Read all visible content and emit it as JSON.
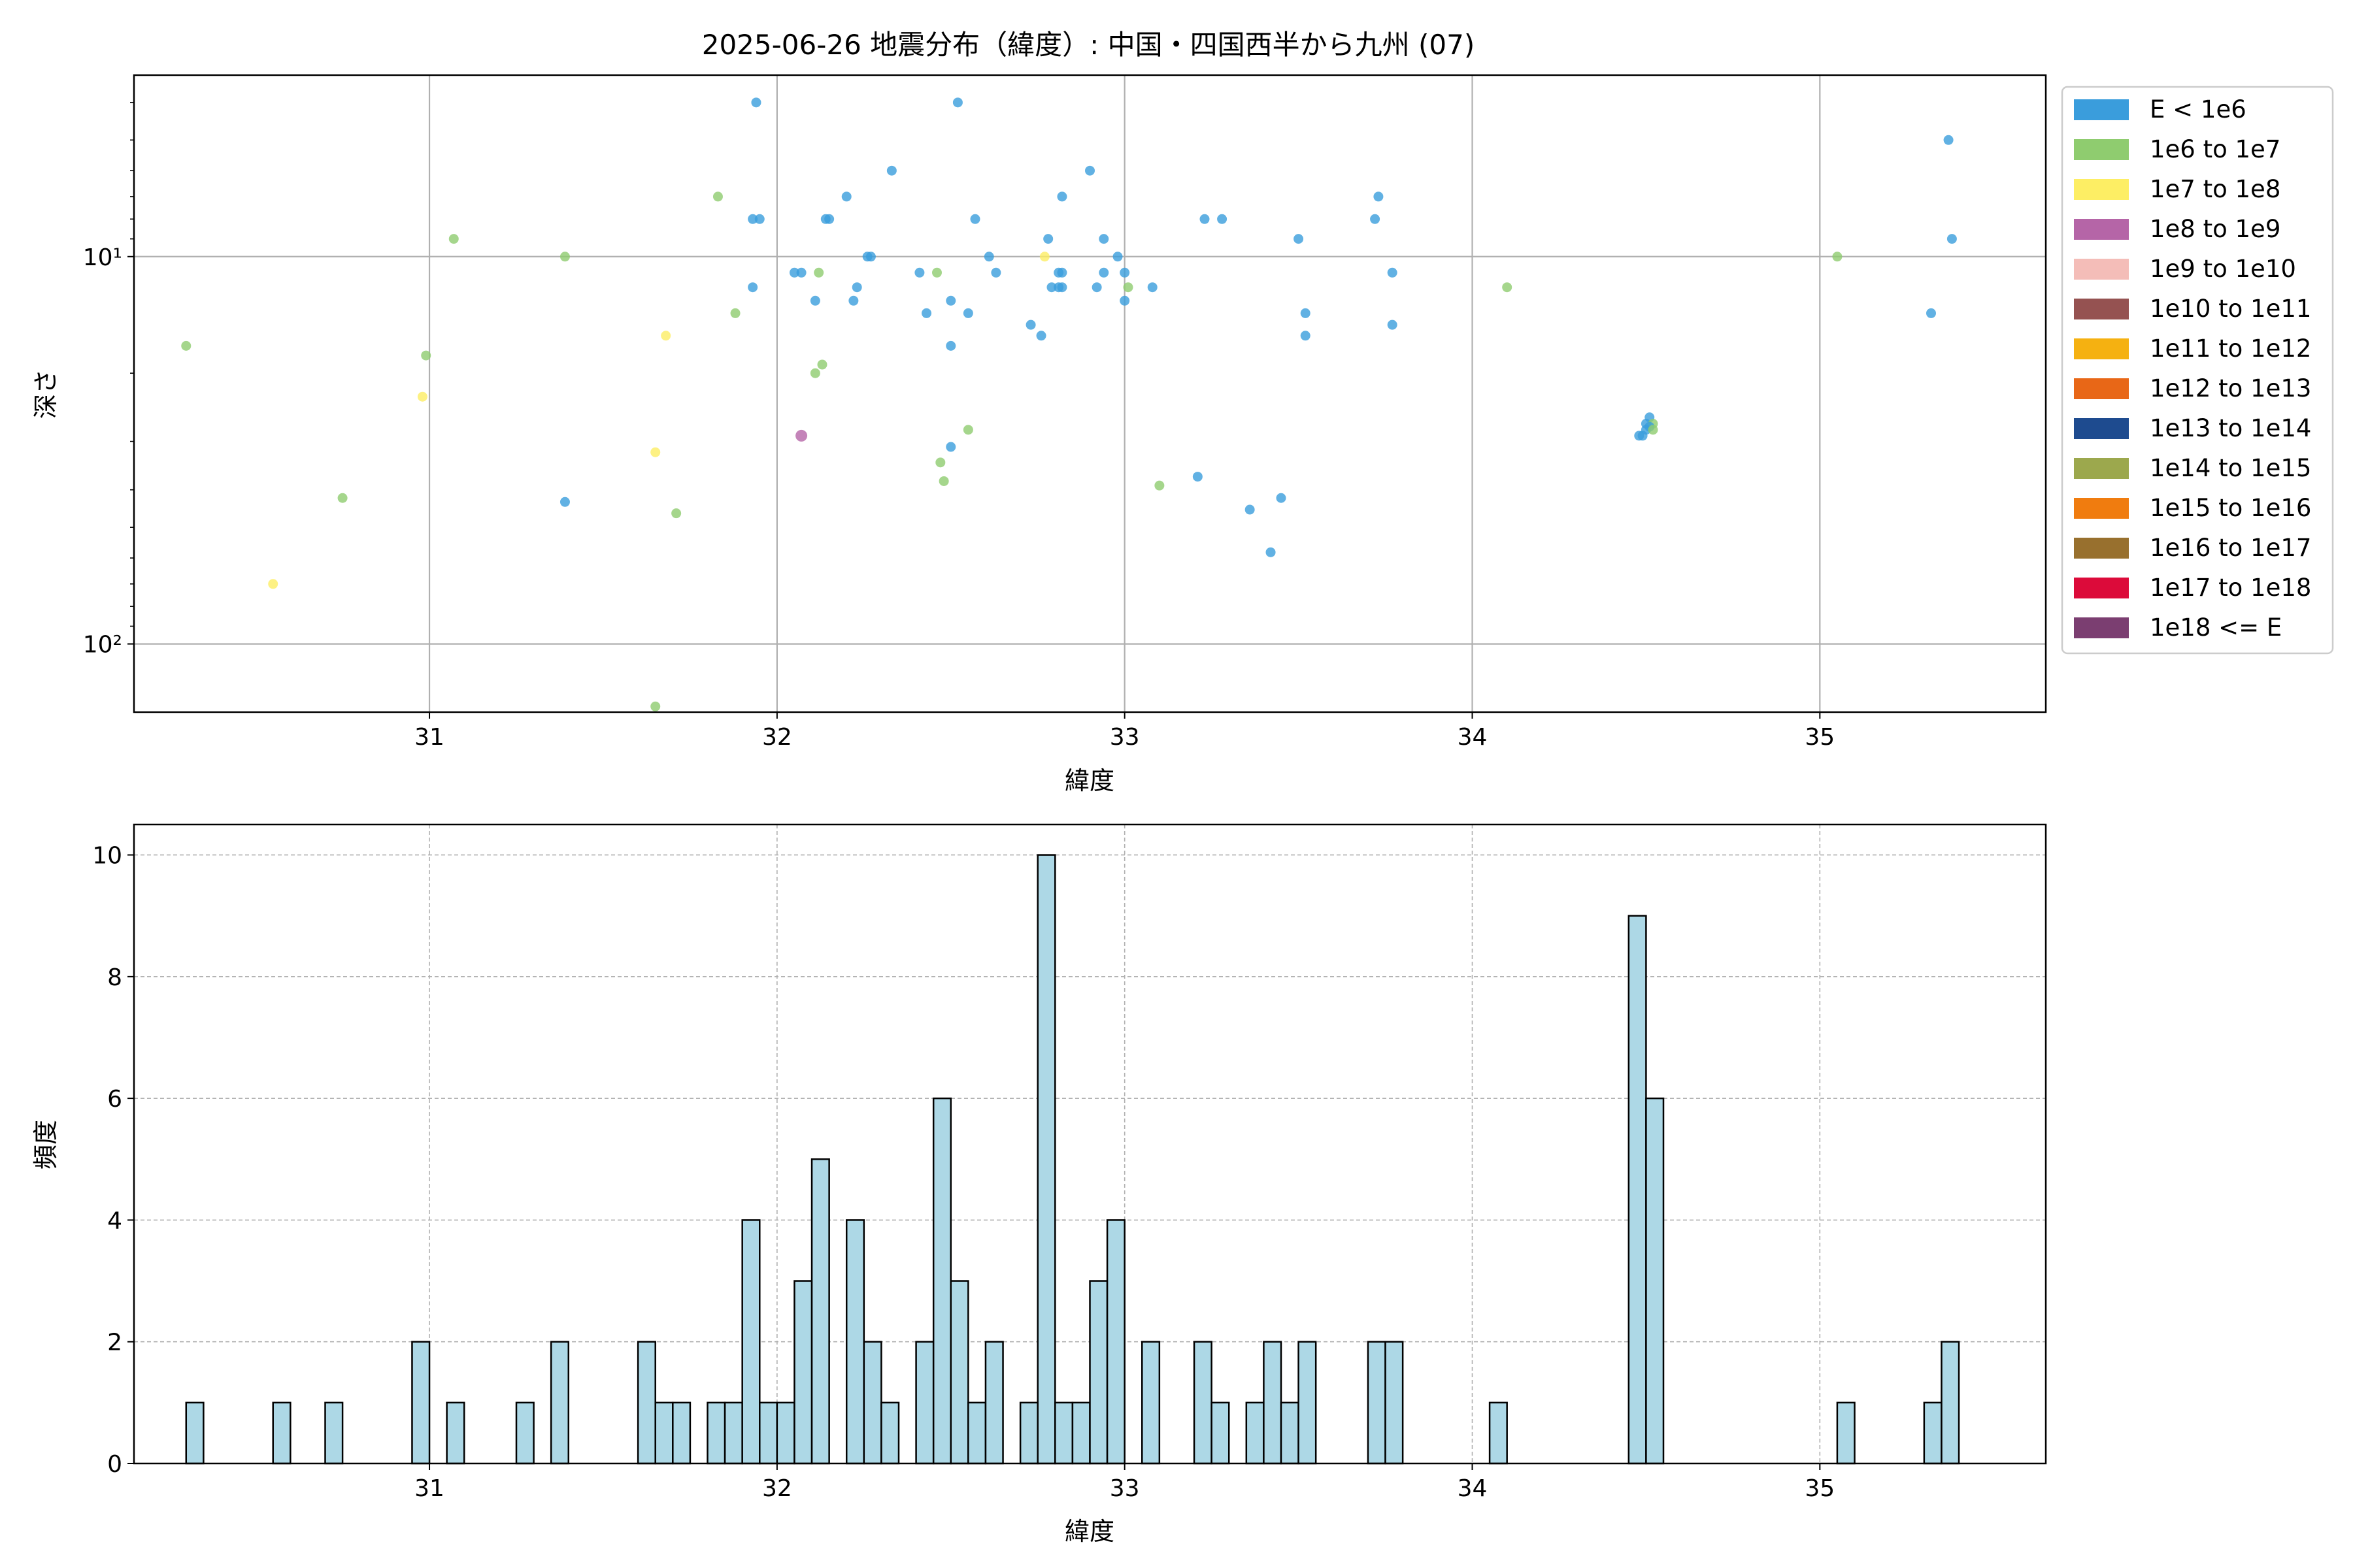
{
  "title": "2025-06-26 地震分布（緯度）: 中国・四国西半から九州 (07)",
  "colors": {
    "scatter_palette": [
      "#3a9ddc",
      "#8fcc6f",
      "#fdee64",
      "#b565a7",
      "#f4bdb8",
      "#955251",
      "#f5b111",
      "#e86717",
      "#1e4b8f",
      "#9ca84d",
      "#f07c0f",
      "#98702e",
      "#dc0b3a",
      "#7b3e71"
    ],
    "hist_fill": "#add8e6",
    "hist_edge": "#000000",
    "grid": "#b0b0b0"
  },
  "chart_data": [
    {
      "type": "scatter",
      "xlabel": "緯度",
      "ylabel": "深さ",
      "y_scale": "log",
      "y_inverted": true,
      "xlim": [
        30.15,
        35.65
      ],
      "ylim": [
        150,
        3.4
      ],
      "xticks": [
        31,
        32,
        33,
        34,
        35
      ],
      "yticks": [
        {
          "value": 10,
          "label": "10¹"
        },
        {
          "value": 100,
          "label": "10²"
        }
      ],
      "grid": true,
      "legend_placement": "outside right",
      "legend": [
        "E < 1e6",
        "1e6 to 1e7",
        "1e7 to 1e8",
        "1e8 to 1e9",
        "1e9 to 1e10",
        "1e10 to 1e11",
        "1e11 to 1e12",
        "1e12 to 1e13",
        "1e13 to 1e14",
        "1e14 to 1e15",
        "1e15 to 1e16",
        "1e16 to 1e17",
        "1e17 to 1e18",
        "1e18 <= E"
      ],
      "points": [
        {
          "x": 31.94,
          "y": 4.0,
          "c": 0
        },
        {
          "x": 32.52,
          "y": 4.0,
          "c": 0
        },
        {
          "x": 35.37,
          "y": 5.0,
          "c": 0
        },
        {
          "x": 32.33,
          "y": 6.0,
          "c": 0
        },
        {
          "x": 32.9,
          "y": 6.0,
          "c": 0
        },
        {
          "x": 31.83,
          "y": 7.0,
          "c": 1
        },
        {
          "x": 32.2,
          "y": 7.0,
          "c": 0
        },
        {
          "x": 32.82,
          "y": 7.0,
          "c": 0
        },
        {
          "x": 33.73,
          "y": 7.0,
          "c": 0
        },
        {
          "x": 31.93,
          "y": 8.0,
          "c": 0
        },
        {
          "x": 31.95,
          "y": 8.0,
          "c": 0
        },
        {
          "x": 32.14,
          "y": 8.0,
          "c": 0
        },
        {
          "x": 32.15,
          "y": 8.0,
          "c": 0
        },
        {
          "x": 32.57,
          "y": 8.0,
          "c": 0
        },
        {
          "x": 33.23,
          "y": 8.0,
          "c": 0
        },
        {
          "x": 33.28,
          "y": 8.0,
          "c": 0
        },
        {
          "x": 33.72,
          "y": 8.0,
          "c": 0
        },
        {
          "x": 31.07,
          "y": 9.0,
          "c": 1
        },
        {
          "x": 32.78,
          "y": 9.0,
          "c": 0
        },
        {
          "x": 32.94,
          "y": 9.0,
          "c": 0
        },
        {
          "x": 33.5,
          "y": 9.0,
          "c": 0
        },
        {
          "x": 35.38,
          "y": 9.0,
          "c": 0
        },
        {
          "x": 31.39,
          "y": 10.0,
          "c": 1
        },
        {
          "x": 32.26,
          "y": 10.0,
          "c": 0
        },
        {
          "x": 32.27,
          "y": 10.0,
          "c": 0
        },
        {
          "x": 32.61,
          "y": 10.0,
          "c": 0
        },
        {
          "x": 32.77,
          "y": 10.0,
          "c": 2
        },
        {
          "x": 32.98,
          "y": 10.0,
          "c": 0
        },
        {
          "x": 35.05,
          "y": 10.0,
          "c": 1
        },
        {
          "x": 32.05,
          "y": 11.0,
          "c": 0
        },
        {
          "x": 32.07,
          "y": 11.0,
          "c": 0
        },
        {
          "x": 32.12,
          "y": 11.0,
          "c": 1
        },
        {
          "x": 32.41,
          "y": 11.0,
          "c": 0
        },
        {
          "x": 32.46,
          "y": 11.0,
          "c": 1
        },
        {
          "x": 32.63,
          "y": 11.0,
          "c": 0
        },
        {
          "x": 32.81,
          "y": 11.0,
          "c": 0
        },
        {
          "x": 32.82,
          "y": 11.0,
          "c": 0
        },
        {
          "x": 32.94,
          "y": 11.0,
          "c": 0
        },
        {
          "x": 33.0,
          "y": 11.0,
          "c": 0
        },
        {
          "x": 33.77,
          "y": 11.0,
          "c": 0
        },
        {
          "x": 31.93,
          "y": 12.0,
          "c": 0
        },
        {
          "x": 32.23,
          "y": 12.0,
          "c": 0
        },
        {
          "x": 32.79,
          "y": 12.0,
          "c": 0
        },
        {
          "x": 32.81,
          "y": 12.0,
          "c": 0
        },
        {
          "x": 32.82,
          "y": 12.0,
          "c": 0
        },
        {
          "x": 32.92,
          "y": 12.0,
          "c": 0
        },
        {
          "x": 33.01,
          "y": 12.0,
          "c": 1
        },
        {
          "x": 33.08,
          "y": 12.0,
          "c": 0
        },
        {
          "x": 34.1,
          "y": 12.0,
          "c": 1
        },
        {
          "x": 32.11,
          "y": 13.0,
          "c": 0
        },
        {
          "x": 32.22,
          "y": 13.0,
          "c": 0
        },
        {
          "x": 32.5,
          "y": 13.0,
          "c": 0
        },
        {
          "x": 33.0,
          "y": 13.0,
          "c": 0
        },
        {
          "x": 31.88,
          "y": 14.0,
          "c": 1
        },
        {
          "x": 32.43,
          "y": 14.0,
          "c": 0
        },
        {
          "x": 32.55,
          "y": 14.0,
          "c": 0
        },
        {
          "x": 33.52,
          "y": 14.0,
          "c": 0
        },
        {
          "x": 32.73,
          "y": 15.0,
          "c": 0
        },
        {
          "x": 33.77,
          "y": 15.0,
          "c": 0
        },
        {
          "x": 35.32,
          "y": 14.0,
          "c": 0
        },
        {
          "x": 31.68,
          "y": 16.0,
          "c": 2
        },
        {
          "x": 32.76,
          "y": 16.0,
          "c": 0
        },
        {
          "x": 33.52,
          "y": 16.0,
          "c": 0
        },
        {
          "x": 30.3,
          "y": 17.0,
          "c": 1
        },
        {
          "x": 32.5,
          "y": 17.0,
          "c": 0
        },
        {
          "x": 30.99,
          "y": 18.0,
          "c": 1
        },
        {
          "x": 32.13,
          "y": 19.0,
          "c": 1
        },
        {
          "x": 32.11,
          "y": 20.0,
          "c": 1
        },
        {
          "x": 30.98,
          "y": 23.0,
          "c": 2
        },
        {
          "x": 34.51,
          "y": 26.0,
          "c": 0
        },
        {
          "x": 34.5,
          "y": 27.0,
          "c": 0
        },
        {
          "x": 34.52,
          "y": 27.0,
          "c": 1
        },
        {
          "x": 34.51,
          "y": 27.5,
          "c": 0
        },
        {
          "x": 34.5,
          "y": 28.0,
          "c": 0
        },
        {
          "x": 34.52,
          "y": 28.0,
          "c": 1
        },
        {
          "x": 32.55,
          "y": 28.0,
          "c": 1
        },
        {
          "x": 34.48,
          "y": 29.0,
          "c": 0
        },
        {
          "x": 34.49,
          "y": 29.0,
          "c": 0
        },
        {
          "x": 32.07,
          "y": 29.0,
          "c": 3
        },
        {
          "x": 31.65,
          "y": 32.0,
          "c": 2
        },
        {
          "x": 32.5,
          "y": 31.0,
          "c": 0
        },
        {
          "x": 32.47,
          "y": 34.0,
          "c": 1
        },
        {
          "x": 32.48,
          "y": 38.0,
          "c": 1
        },
        {
          "x": 33.21,
          "y": 37.0,
          "c": 0
        },
        {
          "x": 33.1,
          "y": 39.0,
          "c": 1
        },
        {
          "x": 30.75,
          "y": 42.0,
          "c": 1
        },
        {
          "x": 33.45,
          "y": 42.0,
          "c": 0
        },
        {
          "x": 31.39,
          "y": 43.0,
          "c": 0
        },
        {
          "x": 33.36,
          "y": 45.0,
          "c": 0
        },
        {
          "x": 31.71,
          "y": 46.0,
          "c": 1
        },
        {
          "x": 33.42,
          "y": 58.0,
          "c": 0
        },
        {
          "x": 30.55,
          "y": 70.0,
          "c": 2
        },
        {
          "x": 31.65,
          "y": 145.0,
          "c": 1
        }
      ]
    },
    {
      "type": "bar",
      "xlabel": "緯度",
      "ylabel": "頻度",
      "xlim": [
        30.15,
        35.65
      ],
      "ylim": [
        0,
        10.5
      ],
      "xticks": [
        31,
        32,
        33,
        34,
        35
      ],
      "yticks": [
        0,
        2,
        4,
        6,
        8,
        10
      ],
      "grid": true,
      "bin_width": 0.05,
      "bins": [
        {
          "x": 30.325,
          "count": 1
        },
        {
          "x": 30.575,
          "count": 1
        },
        {
          "x": 30.725,
          "count": 1
        },
        {
          "x": 30.975,
          "count": 2
        },
        {
          "x": 31.075,
          "count": 1
        },
        {
          "x": 31.275,
          "count": 1
        },
        {
          "x": 31.375,
          "count": 2
        },
        {
          "x": 31.625,
          "count": 2
        },
        {
          "x": 31.675,
          "count": 1
        },
        {
          "x": 31.725,
          "count": 1
        },
        {
          "x": 31.825,
          "count": 1
        },
        {
          "x": 31.875,
          "count": 1
        },
        {
          "x": 31.925,
          "count": 4
        },
        {
          "x": 31.975,
          "count": 1
        },
        {
          "x": 32.025,
          "count": 1
        },
        {
          "x": 32.075,
          "count": 3
        },
        {
          "x": 32.125,
          "count": 5
        },
        {
          "x": 32.225,
          "count": 4
        },
        {
          "x": 32.275,
          "count": 2
        },
        {
          "x": 32.325,
          "count": 1
        },
        {
          "x": 32.425,
          "count": 2
        },
        {
          "x": 32.475,
          "count": 6
        },
        {
          "x": 32.525,
          "count": 3
        },
        {
          "x": 32.575,
          "count": 1
        },
        {
          "x": 32.625,
          "count": 2
        },
        {
          "x": 32.725,
          "count": 1
        },
        {
          "x": 32.775,
          "count": 10
        },
        {
          "x": 32.825,
          "count": 1
        },
        {
          "x": 32.875,
          "count": 1
        },
        {
          "x": 32.925,
          "count": 3
        },
        {
          "x": 32.975,
          "count": 4
        },
        {
          "x": 33.075,
          "count": 2
        },
        {
          "x": 33.225,
          "count": 2
        },
        {
          "x": 33.275,
          "count": 1
        },
        {
          "x": 33.375,
          "count": 1
        },
        {
          "x": 33.425,
          "count": 2
        },
        {
          "x": 33.475,
          "count": 1
        },
        {
          "x": 33.525,
          "count": 2
        },
        {
          "x": 33.725,
          "count": 2
        },
        {
          "x": 33.775,
          "count": 2
        },
        {
          "x": 34.075,
          "count": 1
        },
        {
          "x": 34.475,
          "count": 9
        },
        {
          "x": 34.525,
          "count": 6
        },
        {
          "x": 35.075,
          "count": 1
        },
        {
          "x": 35.325,
          "count": 1
        },
        {
          "x": 35.375,
          "count": 2
        }
      ]
    }
  ]
}
